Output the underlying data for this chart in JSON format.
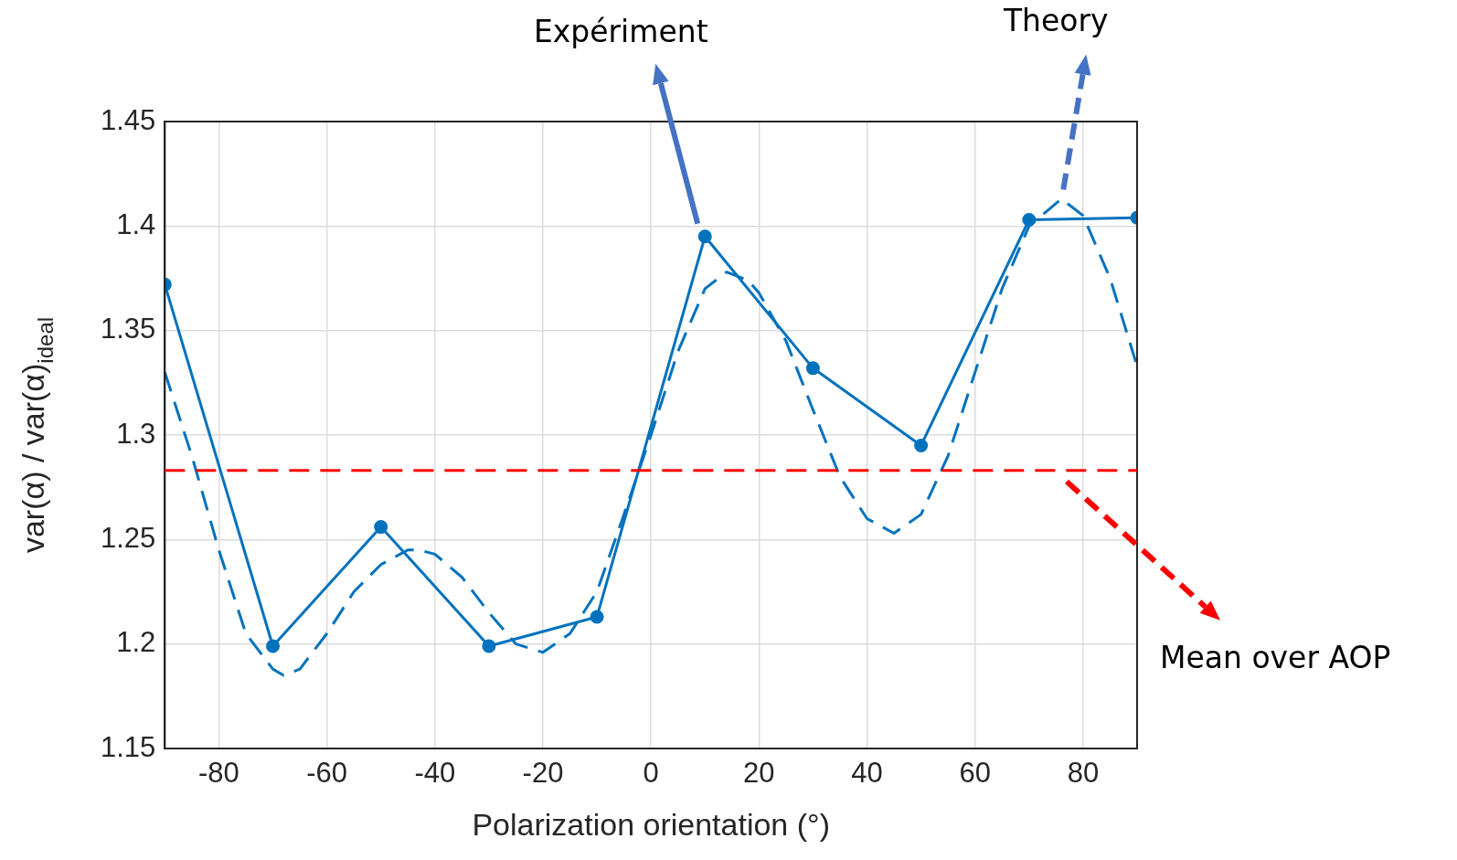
{
  "chart_data": {
    "type": "line",
    "xlabel": "Polarization orientation (°)",
    "ylabel": "var(α) / var(α)$_{ideal}$",
    "xlim": [
      -90,
      90
    ],
    "xticks": [
      -80,
      -60,
      -40,
      -20,
      0,
      20,
      40,
      60,
      80
    ],
    "ylim": [
      1.15,
      1.45
    ],
    "yticks": [
      1.15,
      1.2,
      1.25,
      1.3,
      1.35,
      1.4,
      1.45
    ],
    "grid": true,
    "legend": false,
    "series": [
      {
        "color": "#0072bd",
        "marker": "circle",
        "line_style": "solid",
        "x": [
          -90,
          -70,
          -50,
          -30,
          -10,
          10,
          30,
          50,
          70,
          90
        ],
        "values": [
          1.372,
          1.199,
          1.256,
          1.199,
          1.213,
          1.395,
          1.332,
          1.295,
          1.403,
          1.404
        ]
      },
      {
        "color": "#0072bd",
        "marker": "none",
        "line_style": "dashed",
        "x": [
          -90,
          -85,
          -80,
          -75,
          -70,
          -68,
          -65,
          -60,
          -55,
          -50,
          -45,
          -43,
          -40,
          -35,
          -30,
          -25,
          -20,
          -15,
          -10,
          -5,
          0,
          5,
          10,
          14,
          18,
          20,
          25,
          30,
          35,
          40,
          45,
          50,
          55,
          60,
          65,
          70,
          76,
          80,
          85,
          90
        ],
        "values": [
          1.33,
          1.29,
          1.245,
          1.205,
          1.188,
          1.185,
          1.188,
          1.205,
          1.225,
          1.238,
          1.245,
          1.245,
          1.243,
          1.232,
          1.215,
          1.2,
          1.196,
          1.205,
          1.225,
          1.262,
          1.3,
          1.34,
          1.37,
          1.378,
          1.374,
          1.368,
          1.345,
          1.312,
          1.28,
          1.26,
          1.253,
          1.262,
          1.29,
          1.33,
          1.37,
          1.4,
          1.413,
          1.405,
          1.375,
          1.333
        ]
      }
    ],
    "ref_lines": [
      {
        "axis": "y",
        "value": 1.283,
        "color": "#ff0000",
        "line_style": "dashed"
      }
    ],
    "annotations": [
      "Expériment",
      "Theory",
      "Mean over AOP"
    ]
  }
}
